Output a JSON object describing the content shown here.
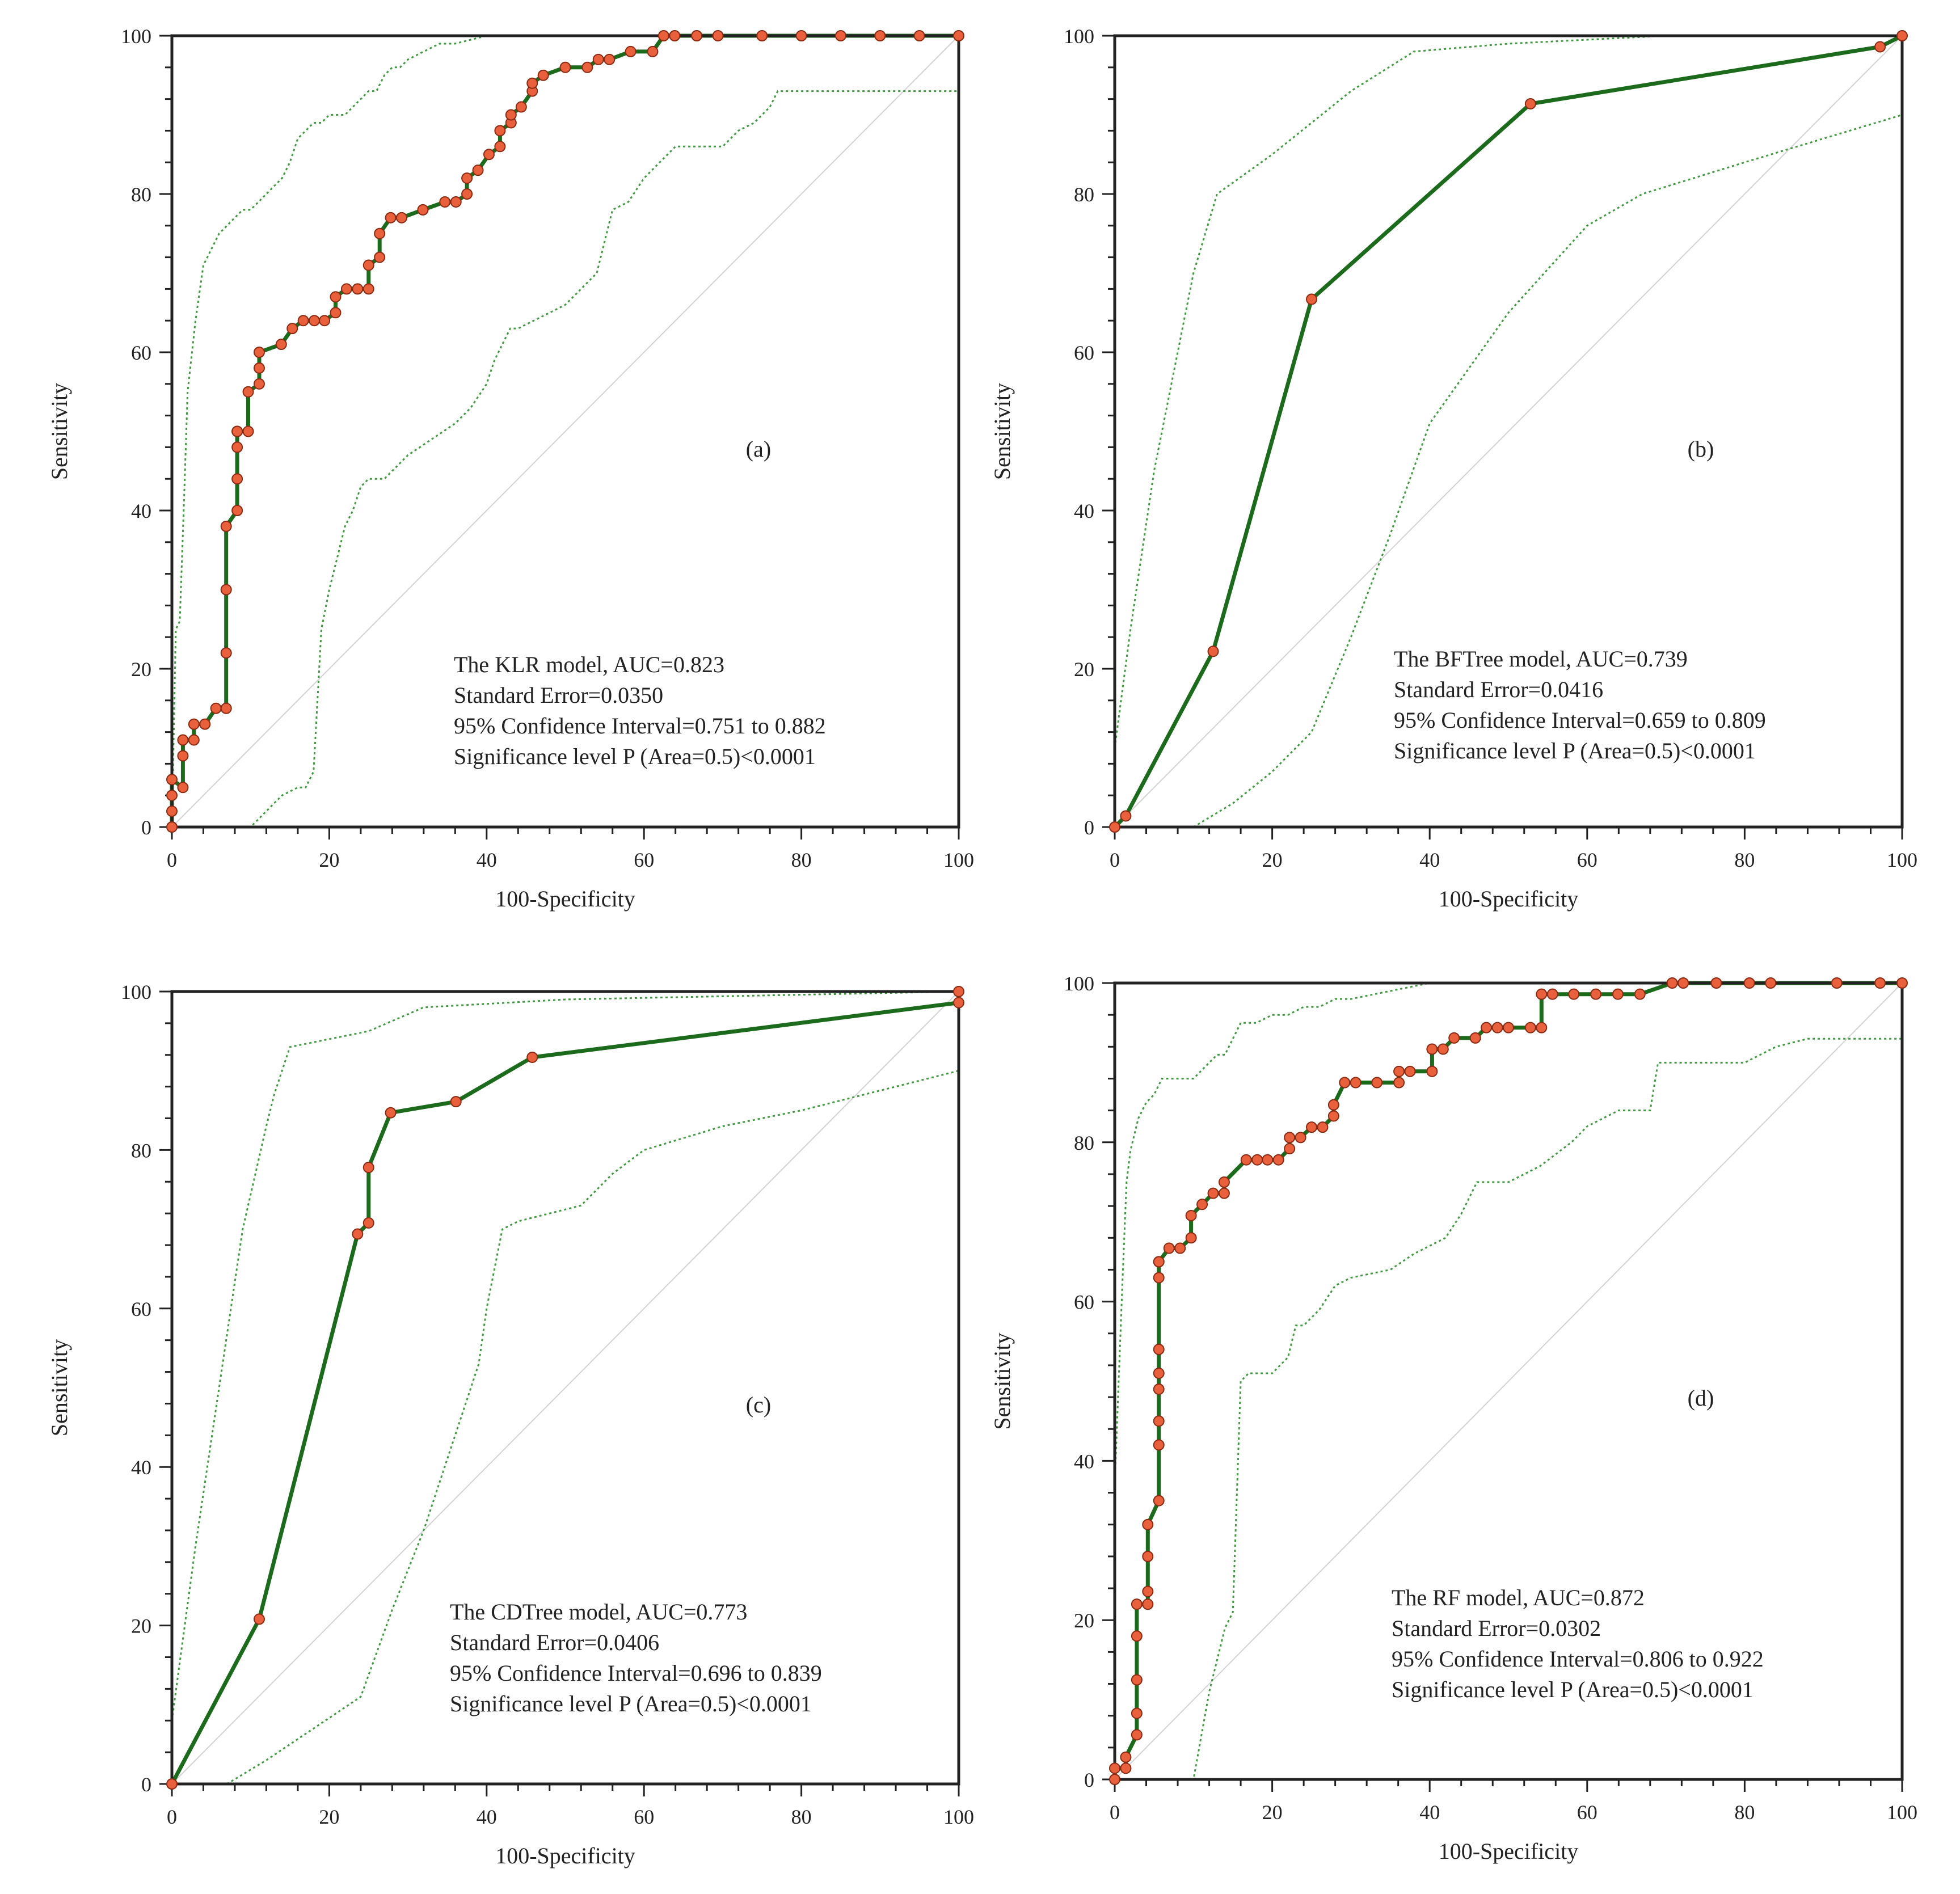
{
  "chart_data": [
    {
      "type": "line",
      "panel_label": "(a)",
      "xlabel": "100-Specificity",
      "ylabel": "Sensitivity",
      "xlim": [
        0,
        100
      ],
      "ylim": [
        0,
        100
      ],
      "xticks": [
        "0",
        "20",
        "40",
        "60",
        "80",
        "100"
      ],
      "yticks": [
        "0",
        "20",
        "40",
        "60",
        "80",
        "100"
      ],
      "grid": false,
      "annotations": [
        "The KLR model, AUC=0.823",
        "Standard Error=0.0350",
        "95% Confidence Interval=0.751 to 0.882",
        "Significance level P (Area=0.5)<0.0001"
      ],
      "series": [
        {
          "name": "ROC",
          "x": [
            0,
            0,
            0,
            0,
            1.4,
            1.4,
            1.4,
            2.8,
            2.8,
            4.2,
            5.6,
            6.9,
            6.9,
            6.9,
            6.9,
            8.3,
            8.3,
            8.3,
            8.3,
            8.3,
            9.7,
            9.7,
            11.1,
            11.1,
            11.1,
            13.9,
            15.3,
            16.7,
            18.1,
            19.4,
            20.8,
            20.8,
            22.2,
            23.6,
            25,
            25,
            26.4,
            26.4,
            27.8,
            29.2,
            31.9,
            34.7,
            36.1,
            37.5,
            37.5,
            38.9,
            40.3,
            41.7,
            41.7,
            43.1,
            43.1,
            44.4,
            45.8,
            45.8,
            47.2,
            50,
            52.8,
            54.2,
            55.6,
            58.3,
            61.1,
            62.5,
            63.9,
            66.7,
            69.4,
            75,
            80,
            85,
            90,
            95,
            100
          ],
          "y": [
            0,
            2,
            4,
            6,
            5,
            9,
            11,
            11,
            13,
            13,
            15,
            15,
            22,
            30,
            38,
            40,
            44,
            48,
            50,
            50,
            50,
            55,
            56,
            58,
            60,
            61,
            63,
            64,
            64,
            64,
            65,
            67,
            68,
            68,
            68,
            71,
            72,
            75,
            77,
            77,
            78,
            79,
            79,
            80,
            82,
            83,
            85,
            86,
            88,
            89,
            90,
            91,
            93,
            94,
            95,
            96,
            96,
            97,
            97,
            98,
            98,
            100,
            100,
            100,
            100,
            100,
            100,
            100,
            100,
            100,
            100
          ]
        },
        {
          "name": "CI upper",
          "x": [
            0,
            0.5,
            1,
            1.5,
            2,
            3,
            4,
            5,
            6,
            7,
            8,
            9,
            10,
            11,
            12,
            13,
            14,
            15,
            16,
            17,
            18,
            19,
            20,
            21,
            22,
            23,
            24,
            25,
            26,
            27,
            28,
            29,
            30,
            32,
            34,
            36,
            40,
            50,
            60,
            70,
            80,
            90,
            100
          ],
          "y": [
            0,
            25,
            26,
            40,
            55,
            64,
            71,
            73,
            75,
            76,
            77,
            78,
            78,
            79,
            80,
            81,
            82,
            84,
            87,
            88,
            89,
            89,
            90,
            90,
            90,
            91,
            92,
            93,
            93,
            95,
            96,
            96,
            97,
            98,
            99,
            99,
            100,
            100,
            100,
            100,
            100,
            100,
            100
          ]
        },
        {
          "name": "CI lower",
          "x": [
            0,
            5,
            7,
            9,
            10,
            12,
            14,
            16,
            17,
            18,
            19,
            20,
            21,
            22,
            23,
            24,
            25,
            27,
            30,
            33,
            36,
            38,
            40,
            41,
            42,
            43,
            44,
            46,
            48,
            50,
            52,
            54,
            55,
            56,
            58,
            60,
            62,
            64,
            66,
            68,
            70,
            72,
            74,
            76,
            77,
            80,
            85,
            90,
            95,
            100
          ],
          "y": [
            0,
            0,
            0,
            0,
            0,
            2,
            4,
            5,
            5,
            7,
            25,
            30,
            34,
            38,
            40,
            43,
            44,
            44,
            47,
            49,
            51,
            53,
            56,
            59,
            61,
            63,
            63,
            64,
            65,
            66,
            68,
            70,
            74,
            78,
            79,
            82,
            84,
            86,
            86,
            86,
            86,
            88,
            89,
            91,
            93,
            93,
            93,
            93,
            93,
            93
          ]
        }
      ]
    },
    {
      "type": "line",
      "panel_label": "(b)",
      "xlabel": "100-Specificity",
      "ylabel": "Sensitivity",
      "xlim": [
        0,
        100
      ],
      "ylim": [
        0,
        100
      ],
      "xticks": [
        "0",
        "20",
        "40",
        "60",
        "80",
        "100"
      ],
      "yticks": [
        "0",
        "20",
        "40",
        "60",
        "80",
        "100"
      ],
      "grid": false,
      "annotations": [
        "The BFTree model, AUC=0.739",
        "Standard Error=0.0416",
        "95% Confidence Interval=0.659 to 0.809",
        "Significance level P (Area=0.5)<0.0001"
      ],
      "series": [
        {
          "name": "ROC",
          "x": [
            0,
            1.4,
            12.5,
            25,
            52.8,
            97.2,
            100
          ],
          "y": [
            0,
            1.4,
            22.2,
            66.7,
            91.4,
            98.6,
            100
          ]
        },
        {
          "name": "CI upper",
          "x": [
            0,
            2,
            5,
            8,
            10,
            13,
            20,
            30,
            38,
            50,
            70,
            100
          ],
          "y": [
            10,
            25,
            45,
            60,
            70,
            80,
            85,
            93,
            98,
            99,
            100,
            100
          ]
        },
        {
          "name": "CI lower",
          "x": [
            10,
            15,
            20,
            25,
            30,
            35,
            40,
            50,
            60,
            67,
            80,
            100
          ],
          "y": [
            0,
            3,
            7,
            12,
            24,
            37,
            51,
            65,
            76,
            80,
            84,
            90
          ]
        }
      ]
    },
    {
      "type": "line",
      "panel_label": "(c)",
      "xlabel": "100-Specificity",
      "ylabel": "Sensitivity",
      "xlim": [
        0,
        100
      ],
      "ylim": [
        0,
        100
      ],
      "xticks": [
        "0",
        "20",
        "40",
        "60",
        "80",
        "100"
      ],
      "yticks": [
        "0",
        "20",
        "40",
        "60",
        "80",
        "100"
      ],
      "grid": false,
      "annotations": [
        "The CDTree model, AUC=0.773",
        "Standard Error=0.0406",
        "95% Confidence Interval=0.696 to 0.839",
        "Significance level P (Area=0.5)<0.0001"
      ],
      "series": [
        {
          "name": "ROC",
          "x": [
            0,
            11.1,
            23.6,
            25,
            25,
            27.8,
            36.1,
            45.8,
            100,
            100
          ],
          "y": [
            0,
            20.8,
            69.4,
            70.8,
            77.8,
            84.7,
            86.1,
            91.7,
            98.6,
            100
          ]
        },
        {
          "name": "CI upper",
          "x": [
            0,
            3,
            6,
            9,
            12,
            13,
            15,
            20,
            25,
            32,
            50,
            100
          ],
          "y": [
            8,
            30,
            50,
            70,
            83,
            87,
            93,
            94,
            95,
            98,
            99,
            100
          ]
        },
        {
          "name": "CI lower",
          "x": [
            7,
            12,
            18,
            24,
            28,
            32,
            36,
            39,
            40,
            42,
            44,
            52,
            56,
            60,
            70,
            80,
            100
          ],
          "y": [
            0,
            3,
            7,
            11,
            22,
            32,
            44,
            53,
            60,
            70,
            71,
            73,
            77,
            80,
            83,
            85,
            90
          ]
        }
      ]
    },
    {
      "type": "line",
      "panel_label": "(d)",
      "xlabel": "100-Specificity",
      "ylabel": "Sensitivity",
      "xlim": [
        0,
        100
      ],
      "ylim": [
        0,
        100
      ],
      "xticks": [
        "0",
        "20",
        "40",
        "60",
        "80",
        "100"
      ],
      "yticks": [
        "0",
        "20",
        "40",
        "60",
        "80",
        "100"
      ],
      "grid": false,
      "annotations": [
        "The RF model, AUC=0.872",
        "Standard Error=0.0302",
        "95% Confidence Interval=0.806 to 0.922",
        "Significance level P (Area=0.5)<0.0001"
      ],
      "series": [
        {
          "name": "ROC",
          "x": [
            0,
            0,
            1.4,
            1.4,
            2.8,
            2.8,
            2.8,
            2.8,
            2.8,
            4.2,
            4.2,
            4.2,
            4.2,
            5.6,
            5.6,
            5.6,
            5.6,
            5.6,
            5.6,
            5.6,
            5.6,
            5.6,
            6.9,
            8.3,
            9.7,
            9.7,
            11.1,
            12.5,
            13.9,
            13.9,
            16.7,
            18.1,
            19.4,
            20.8,
            22.2,
            22.2,
            23.6,
            25,
            26.4,
            27.8,
            27.8,
            29.2,
            30.6,
            33.3,
            36.1,
            36.1,
            37.5,
            40.3,
            40.3,
            41.7,
            43.1,
            45.8,
            47.2,
            48.6,
            50,
            52.8,
            54.2,
            54.2,
            55.6,
            58.3,
            61.1,
            63.9,
            66.7,
            70.8,
            72.2,
            76.4,
            80.6,
            83.3,
            91.7,
            97.2,
            100
          ],
          "y": [
            0,
            1.4,
            1.4,
            2.8,
            5.6,
            8.3,
            12.5,
            18,
            22,
            22,
            23.6,
            28,
            32,
            35,
            42,
            45,
            49,
            51,
            54,
            63,
            65,
            65,
            66.7,
            66.7,
            68,
            70.8,
            72.2,
            73.6,
            73.6,
            75,
            77.8,
            77.8,
            77.8,
            77.8,
            79.2,
            80.6,
            80.6,
            81.9,
            81.9,
            83.3,
            84.7,
            87.5,
            87.5,
            87.5,
            87.5,
            88.9,
            88.9,
            88.9,
            91.7,
            91.7,
            93.1,
            93.1,
            94.4,
            94.4,
            94.4,
            94.4,
            94.4,
            98.6,
            98.6,
            98.6,
            98.6,
            98.6,
            98.6,
            100,
            100,
            100,
            100,
            100,
            100,
            100,
            100
          ]
        },
        {
          "name": "CI upper",
          "x": [
            0,
            0.5,
            1,
            1.5,
            2,
            2.5,
            3,
            4,
            5,
            6,
            7,
            8,
            9,
            10,
            11,
            12,
            13,
            14,
            15,
            16,
            17,
            18,
            20,
            22,
            24,
            26,
            28,
            30,
            35,
            40,
            50,
            60,
            80,
            100
          ],
          "y": [
            37,
            50,
            63,
            75,
            79,
            81,
            83,
            85,
            86,
            88,
            88,
            88,
            88,
            88,
            89,
            90,
            91,
            91,
            93,
            95,
            95,
            95,
            96,
            96,
            97,
            97,
            98,
            98,
            99,
            100,
            100,
            100,
            100,
            100
          ]
        },
        {
          "name": "CI lower",
          "x": [
            0,
            10,
            12,
            14,
            15,
            16,
            17,
            20,
            22,
            23,
            24,
            26,
            28,
            30,
            35,
            38,
            40,
            42,
            44,
            46,
            50,
            54,
            58,
            60,
            64,
            68,
            69,
            72,
            76,
            80,
            84,
            88,
            100
          ],
          "y": [
            0,
            0,
            11,
            19,
            21,
            50,
            51,
            51,
            53,
            57,
            57,
            59,
            62,
            63,
            64,
            66,
            67,
            68,
            71,
            75,
            75,
            77,
            80,
            82,
            84,
            84,
            90,
            90,
            90,
            90,
            92,
            93,
            93
          ]
        }
      ]
    }
  ]
}
